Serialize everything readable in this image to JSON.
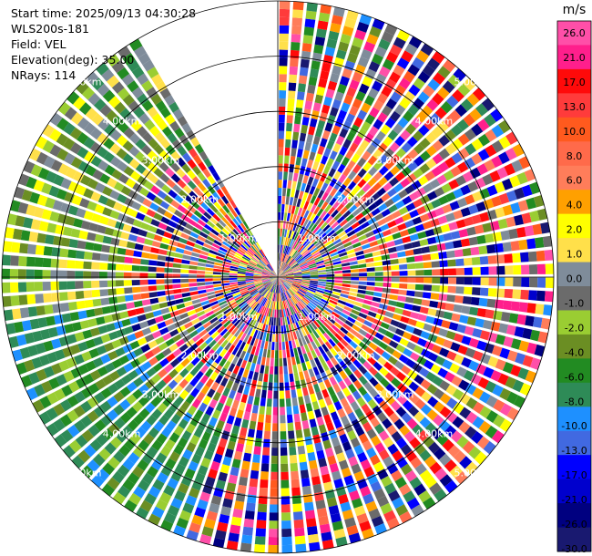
{
  "info": {
    "start_time": "Start time: 2025/09/13 04:30:28",
    "instrument": "WLS200s-181",
    "field": "Field: VEL",
    "elevation": "Elevation(deg): 35.00",
    "nrays": "NRays: 114"
  },
  "chart_data": {
    "type": "polar_ppi",
    "field": "VEL",
    "units": "m/s",
    "nrays": 114,
    "max_range_km": 5.0,
    "range_rings_km": [
      1,
      2,
      3,
      4,
      5
    ],
    "range_ring_labels": [
      "1.00km",
      "2.00km",
      "3.00km",
      "4.00km",
      "5.00km"
    ],
    "missing_sector_deg": [
      -30,
      0
    ],
    "colorbar": {
      "title": "m/s",
      "ticks": [
        "26.0",
        "21.0",
        "17.0",
        "13.0",
        "10.0",
        "8.0",
        "6.0",
        "4.0",
        "2.0",
        "1.0",
        "0.0",
        "-1.0",
        "-2.0",
        "-4.0",
        "-6.0",
        "-8.0",
        "-10.0",
        "-13.0",
        "-17.0",
        "-21.0",
        "-26.0",
        "-30.0"
      ],
      "bins": [
        {
          "lo": 26,
          "hi": 30,
          "color": "#ff4fa8"
        },
        {
          "lo": 21,
          "hi": 26,
          "color": "#ff1f8c"
        },
        {
          "lo": 17,
          "hi": 21,
          "color": "#ff0a0a"
        },
        {
          "lo": 13,
          "hi": 17,
          "color": "#ff3b3b"
        },
        {
          "lo": 10,
          "hi": 13,
          "color": "#ff5a1e"
        },
        {
          "lo": 8,
          "hi": 10,
          "color": "#ff6a4a"
        },
        {
          "lo": 6,
          "hi": 8,
          "color": "#ff7d5a"
        },
        {
          "lo": 4,
          "hi": 6,
          "color": "#ffa000"
        },
        {
          "lo": 2,
          "hi": 4,
          "color": "#ffff00"
        },
        {
          "lo": 1,
          "hi": 2,
          "color": "#ffe04a"
        },
        {
          "lo": 0,
          "hi": 1,
          "color": "#7f8c9a"
        },
        {
          "lo": -1,
          "hi": 0,
          "color": "#6b6b6b"
        },
        {
          "lo": -2,
          "hi": -1,
          "color": "#9acd32"
        },
        {
          "lo": -4,
          "hi": -2,
          "color": "#6b8e23"
        },
        {
          "lo": -6,
          "hi": -4,
          "color": "#228b22"
        },
        {
          "lo": -8,
          "hi": -6,
          "color": "#2e8b57"
        },
        {
          "lo": -10,
          "hi": -8,
          "color": "#1e90ff"
        },
        {
          "lo": -13,
          "hi": -10,
          "color": "#4169e1"
        },
        {
          "lo": -17,
          "hi": -13,
          "color": "#0000ff"
        },
        {
          "lo": -21,
          "hi": -17,
          "color": "#0000cd"
        },
        {
          "lo": -26,
          "hi": -21,
          "color": "#000080"
        },
        {
          "lo": -30,
          "hi": -26,
          "color": "#191970"
        }
      ]
    }
  }
}
